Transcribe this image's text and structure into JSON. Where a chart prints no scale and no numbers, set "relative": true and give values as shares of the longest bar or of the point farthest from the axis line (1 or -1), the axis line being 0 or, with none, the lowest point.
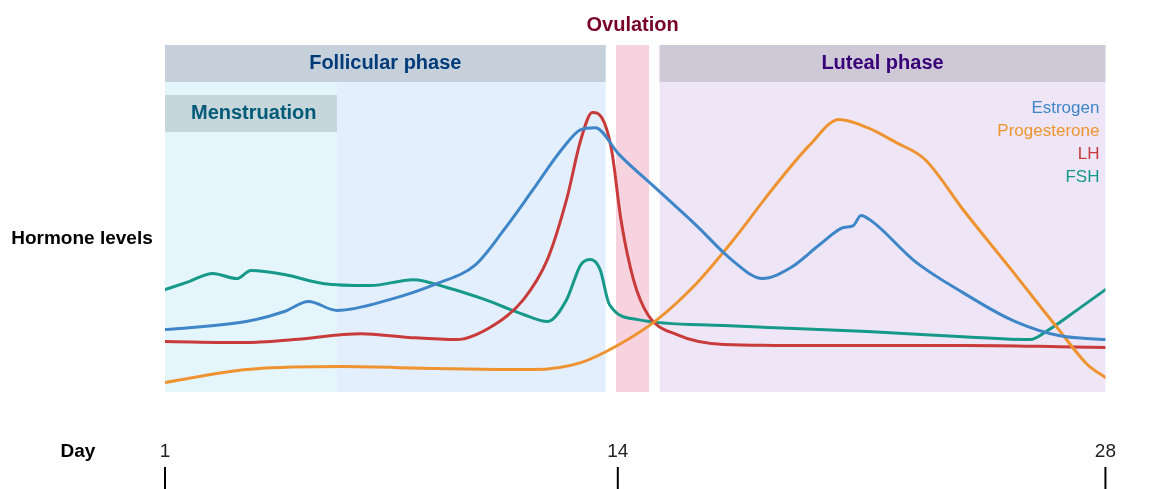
{
  "chart_data": {
    "type": "line",
    "relative": true,
    "xlabel": "Day",
    "ylabel": "Hormone levels",
    "xlim": [
      1,
      28
    ],
    "xticks": [
      1,
      14,
      28
    ],
    "grid": false,
    "legend": "top right",
    "marker": "none",
    "line_style": "solid",
    "bands": [
      {
        "axis": "x",
        "from": 1,
        "to": 13.65,
        "label": "Follicular phase",
        "color": "#e3effc"
      },
      {
        "axis": "x",
        "from": 1,
        "to": 5.94,
        "label": "Menstruation",
        "color": "#e4f6fc"
      },
      {
        "axis": "x",
        "from": 13.95,
        "to": 14.9,
        "label": "Ovulation",
        "color": "#f7d3df"
      },
      {
        "axis": "x",
        "from": 15.2,
        "to": 28,
        "label": "Luteal phase",
        "color": "#eee6f7"
      }
    ],
    "series": [
      {
        "name": "Estrogen",
        "color": "#3f86c9",
        "x": [
          1,
          3.33,
          4.43,
          5.12,
          5.94,
          7.45,
          8.82,
          9.92,
          10.74,
          11.57,
          12.39,
          12.94,
          13.35,
          14.04,
          15.13,
          16.23,
          17.33,
          18.15,
          18.97,
          19.8,
          20.48,
          20.76,
          20.98,
          21.31,
          22.54,
          23.91,
          25.29,
          26.66,
          28
        ],
        "values": [
          0.196,
          0.226,
          0.263,
          0.3,
          0.267,
          0.307,
          0.367,
          0.437,
          0.567,
          0.715,
          0.863,
          0.937,
          0.944,
          0.844,
          0.715,
          0.585,
          0.448,
          0.385,
          0.426,
          0.511,
          0.574,
          0.581,
          0.619,
          0.596,
          0.448,
          0.333,
          0.233,
          0.174,
          0.159
        ]
      },
      {
        "name": "Progesterone",
        "color": "#ee9330",
        "x": [
          1,
          3.33,
          6.08,
          8.82,
          11.57,
          12.94,
          14.04,
          15.13,
          16.23,
          17.33,
          18.43,
          19.52,
          20.35,
          21.17,
          21.99,
          22.82,
          23.91,
          25.29,
          26.66,
          27.48,
          28
        ],
        "values": [
          0,
          0.048,
          0.059,
          0.052,
          0.048,
          0.074,
          0.141,
          0.233,
          0.363,
          0.53,
          0.715,
          0.881,
          0.974,
          0.944,
          0.889,
          0.826,
          0.641,
          0.419,
          0.196,
          0.067,
          0.019
        ]
      },
      {
        "name": "LH",
        "color": "#c93b3b",
        "x": [
          1,
          3.33,
          4.7,
          6.63,
          8.0,
          9.37,
          10.47,
          11.29,
          11.98,
          12.53,
          12.94,
          13.27,
          13.54,
          13.82,
          14.09,
          14.45,
          14.86,
          15.68,
          17.05,
          19.8,
          23.91,
          26.66,
          28
        ],
        "values": [
          0.152,
          0.148,
          0.159,
          0.181,
          0.167,
          0.159,
          0.215,
          0.307,
          0.456,
          0.678,
          0.9,
          1,
          0.981,
          0.863,
          0.604,
          0.381,
          0.252,
          0.178,
          0.141,
          0.137,
          0.137,
          0.133,
          0.13
        ]
      },
      {
        "name": "FSH",
        "color": "#17998a",
        "x": [
          1,
          1.69,
          2.37,
          3.06,
          3.47,
          4.43,
          5.53,
          6.9,
          8.13,
          9.09,
          10.19,
          11.29,
          11.98,
          12.53,
          12.94,
          13.22,
          13.49,
          13.76,
          14.58,
          17.05,
          21.17,
          23.91,
          25.83,
          26.38,
          27.2,
          28
        ],
        "values": [
          0.344,
          0.374,
          0.404,
          0.385,
          0.415,
          0.4,
          0.367,
          0.359,
          0.381,
          0.352,
          0.307,
          0.252,
          0.226,
          0.307,
          0.437,
          0.456,
          0.419,
          0.289,
          0.233,
          0.211,
          0.189,
          0.17,
          0.159,
          0.196,
          0.27,
          0.344
        ]
      }
    ]
  }
}
